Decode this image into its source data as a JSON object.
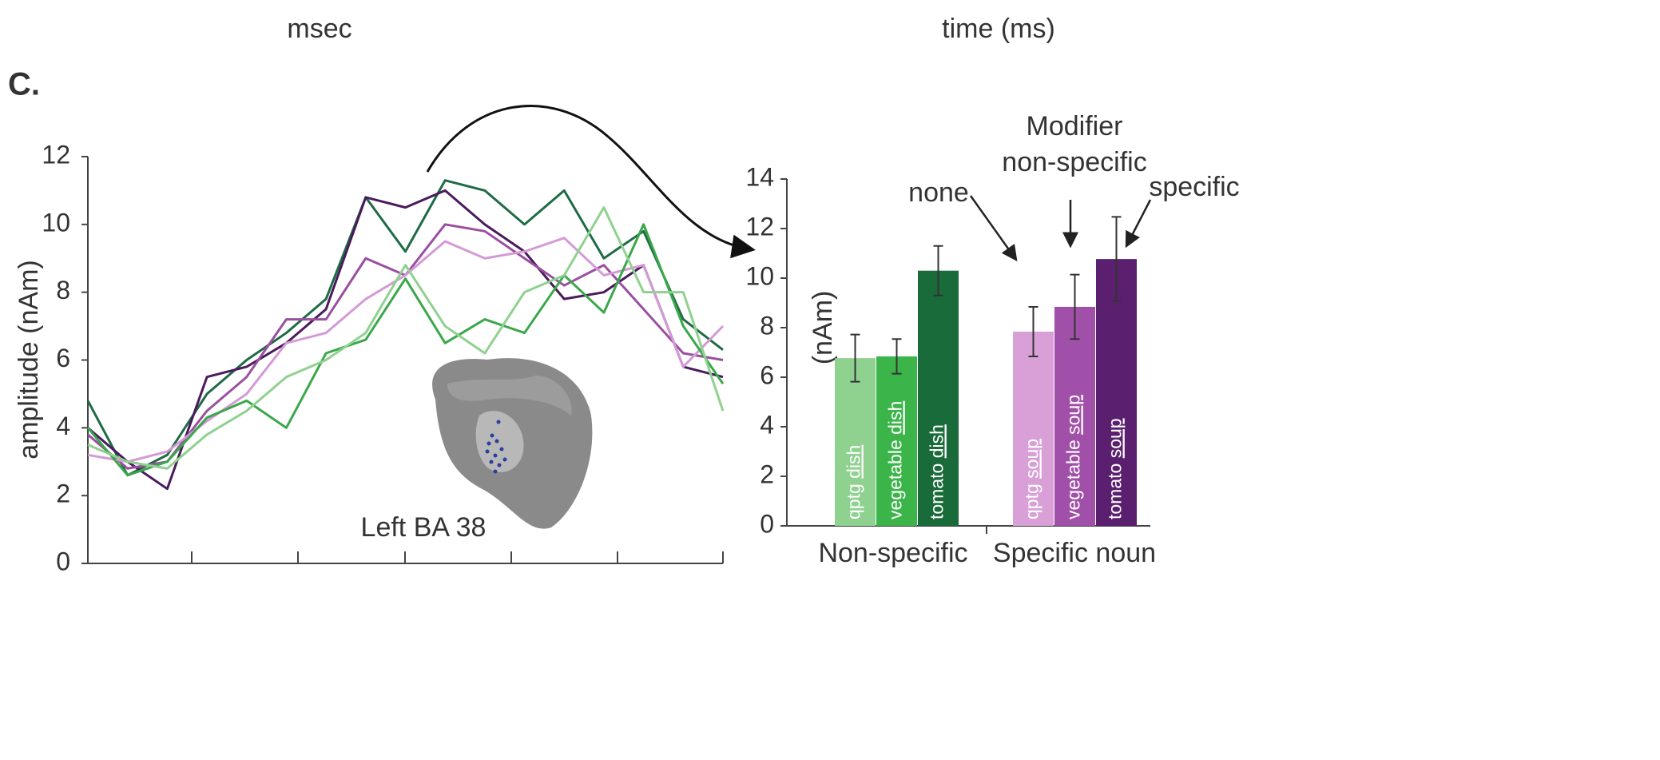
{
  "panel_label": "C.",
  "top_labels": [
    "msec",
    "time (ms)"
  ],
  "chart_data": [
    {
      "type": "line",
      "y_label": "amplitude (nAm)",
      "ylim": [
        0,
        12
      ],
      "yticks": [
        0,
        2,
        4,
        6,
        8,
        10,
        12
      ],
      "annotation": "Left BA 38",
      "series": [
        {
          "color": "#1e6b45",
          "values": [
            4.8,
            2.6,
            3.2,
            5.0,
            6.0,
            6.8,
            7.8,
            10.8,
            9.2,
            11.3,
            11.0,
            10.0,
            11.0,
            9.0,
            9.8,
            7.2,
            6.3
          ]
        },
        {
          "color": "#4a1a5c",
          "values": [
            4.0,
            3.0,
            2.2,
            5.5,
            5.8,
            6.5,
            7.5,
            10.8,
            10.5,
            11.0,
            10.0,
            9.2,
            7.8,
            8.0,
            8.8,
            5.8,
            5.5
          ]
        },
        {
          "color": "#9a4fa0",
          "values": [
            3.8,
            2.8,
            3.0,
            4.5,
            5.5,
            7.2,
            7.2,
            9.0,
            8.5,
            10.0,
            9.8,
            9.0,
            8.2,
            8.8,
            7.5,
            6.2,
            6.0
          ]
        },
        {
          "color": "#d49ad6",
          "values": [
            3.2,
            3.0,
            3.3,
            4.2,
            5.0,
            6.5,
            6.8,
            7.8,
            8.5,
            9.5,
            9.0,
            9.2,
            9.6,
            8.5,
            8.8,
            5.8,
            7.0
          ]
        },
        {
          "color": "#3aa84a",
          "values": [
            4.0,
            2.6,
            3.0,
            4.3,
            4.8,
            4.0,
            6.2,
            6.6,
            8.4,
            6.5,
            7.2,
            6.8,
            8.5,
            7.4,
            10.0,
            7.0,
            5.3
          ]
        },
        {
          "color": "#8fd18f",
          "values": [
            3.5,
            3.0,
            2.8,
            3.8,
            4.5,
            5.5,
            6.0,
            6.8,
            8.8,
            7.0,
            6.2,
            8.0,
            8.5,
            10.5,
            8.0,
            8.0,
            4.5
          ]
        }
      ]
    },
    {
      "type": "bar",
      "y_label": "(nAm)",
      "ylim": [
        0,
        14
      ],
      "yticks": [
        0,
        2,
        4,
        6,
        8,
        10,
        12,
        14
      ],
      "bar_labels": [
        [
          "qptg",
          "dish"
        ],
        [
          "vegetable",
          "dish"
        ],
        [
          "tomato",
          "dish"
        ],
        [
          "qptg",
          "soup"
        ],
        [
          "vegetable",
          "soup"
        ],
        [
          "tomato",
          "soup"
        ]
      ],
      "values": [
        6.77,
        6.84,
        10.3,
        7.84,
        8.84,
        10.77
      ],
      "errors": [
        0.95,
        0.7,
        1.0,
        1.0,
        1.3,
        1.7
      ],
      "colors": [
        "#8fd18f",
        "#3bb54a",
        "#1a6b3a",
        "#d9a0d8",
        "#a050a8",
        "#5a1f6e"
      ],
      "groups": [
        "Non-specific",
        "Specific noun"
      ],
      "annotations": [
        "none",
        "Modifier",
        "non-specific",
        "specific"
      ]
    }
  ]
}
